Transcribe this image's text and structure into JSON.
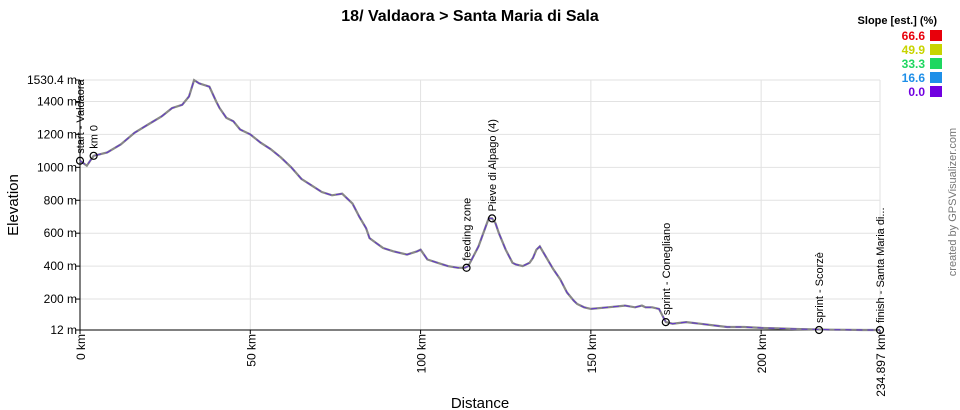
{
  "chart_data": {
    "type": "line",
    "title": "18/ Valdaora > Santa Maria di Sala",
    "xlabel": "Distance",
    "ylabel": "Elevation",
    "xlim": [
      0,
      234.897
    ],
    "ylim": [
      12,
      1530.4
    ],
    "x_ticks": [
      {
        "value": 0,
        "label": "0 km"
      },
      {
        "value": 50,
        "label": "50 km"
      },
      {
        "value": 100,
        "label": "100 km"
      },
      {
        "value": 150,
        "label": "150 km"
      },
      {
        "value": 200,
        "label": "200 km"
      },
      {
        "value": 234.897,
        "label": "234.897 km"
      }
    ],
    "y_ticks": [
      {
        "value": 12,
        "label": "12 m"
      },
      {
        "value": 200,
        "label": "200 m"
      },
      {
        "value": 400,
        "label": "400 m"
      },
      {
        "value": 600,
        "label": "600 m"
      },
      {
        "value": 800,
        "label": "800 m"
      },
      {
        "value": 1000,
        "label": "1000 m"
      },
      {
        "value": 1200,
        "label": "1200 m"
      },
      {
        "value": 1400,
        "label": "1400 m"
      },
      {
        "value": 1530.4,
        "label": "1530.4 m"
      }
    ],
    "grid": true,
    "profile": {
      "x": [
        0,
        2,
        4,
        8,
        12,
        16,
        20,
        24,
        27,
        30,
        32,
        33.5,
        35,
        38,
        40,
        41,
        43,
        45,
        47,
        50,
        53,
        56,
        59,
        62,
        65,
        68,
        71,
        74,
        77,
        80,
        82,
        84,
        85,
        87,
        89,
        92,
        96,
        99,
        100,
        102,
        105,
        108,
        111,
        113,
        114,
        117,
        120,
        121,
        122,
        123,
        125,
        127,
        128,
        130,
        132,
        133,
        134,
        135,
        137,
        139,
        141,
        143,
        145,
        146,
        148,
        150,
        155,
        160,
        163,
        165,
        166,
        168,
        170,
        172,
        174,
        178,
        182,
        186,
        190,
        195,
        200,
        205,
        210,
        215,
        220,
        225,
        230,
        234.897
      ],
      "y": [
        1040,
        1010,
        1070,
        1090,
        1140,
        1210,
        1260,
        1310,
        1360,
        1380,
        1430,
        1530,
        1510,
        1490,
        1400,
        1360,
        1300,
        1280,
        1230,
        1200,
        1150,
        1110,
        1060,
        1000,
        930,
        890,
        850,
        830,
        840,
        780,
        700,
        630,
        570,
        540,
        510,
        490,
        470,
        490,
        500,
        440,
        420,
        400,
        390,
        390,
        400,
        520,
        690,
        690,
        660,
        600,
        500,
        420,
        410,
        400,
        420,
        450,
        500,
        520,
        450,
        380,
        320,
        240,
        190,
        170,
        150,
        140,
        150,
        160,
        150,
        160,
        150,
        150,
        140,
        60,
        50,
        60,
        50,
        40,
        30,
        30,
        25,
        22,
        18,
        16,
        14,
        13,
        12,
        12
      ]
    },
    "waypoints": [
      {
        "x": 0,
        "y": 1040,
        "label": "start - Valdaora"
      },
      {
        "x": 4,
        "y": 1070,
        "label": "km 0"
      },
      {
        "x": 113.5,
        "y": 390,
        "label": "feeding zone"
      },
      {
        "x": 121,
        "y": 690,
        "label": "Pieve di Alpago (4)"
      },
      {
        "x": 172,
        "y": 60,
        "label": "sprint - Conegliano"
      },
      {
        "x": 217,
        "y": 12,
        "label": "sprint - Scorzè"
      },
      {
        "x": 234.897,
        "y": 12,
        "label": "finish - Santa Maria di..."
      }
    ],
    "legend": {
      "title": "Slope [est.] (%)",
      "position": "top-right",
      "items": [
        {
          "value": "66.6",
          "color": "#e8000b"
        },
        {
          "value": "49.9",
          "color": "#c8d400"
        },
        {
          "value": "33.3",
          "color": "#1ed760"
        },
        {
          "value": "16.6",
          "color": "#1e8fe8"
        },
        {
          "value": "0.0",
          "color": "#7000e0"
        }
      ]
    },
    "line_color": "#888888"
  },
  "credit": "created by GPSVisualizer.com"
}
